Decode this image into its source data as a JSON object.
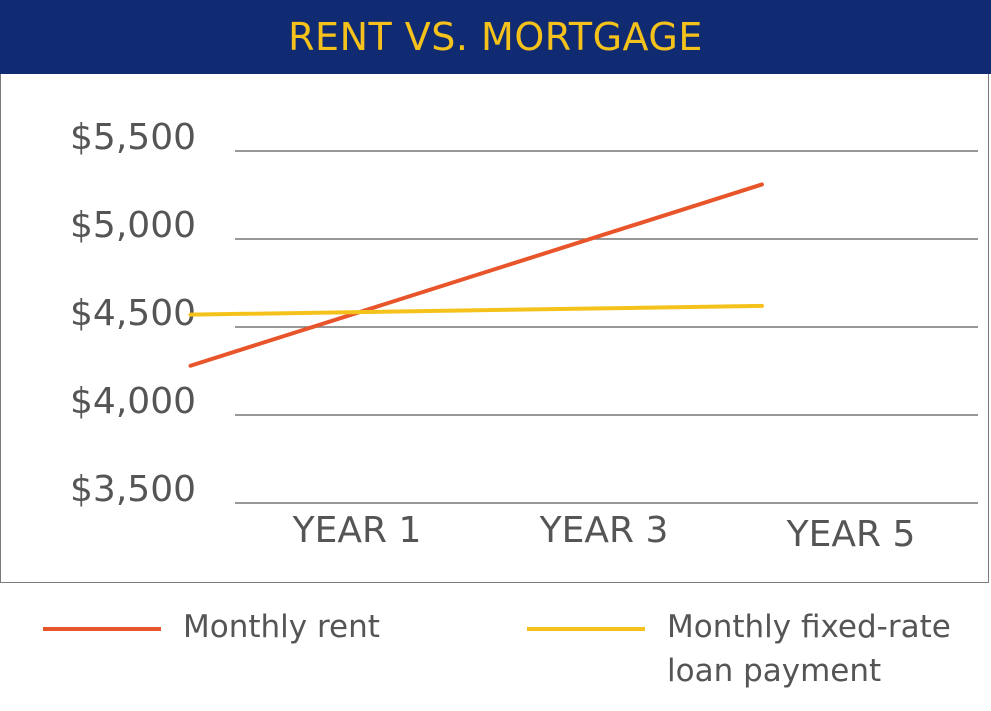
{
  "title": "RENT VS. MORTGAGE",
  "colors": {
    "title_bg": "#112b72",
    "title_text": "#f5c21b",
    "rent": "#e8552b",
    "loan": "#f5c21b",
    "grid": "#777777",
    "tick_text": "#555555"
  },
  "legend": {
    "rent_label": "Monthly rent",
    "loan_label_line1": "Monthly fixed-rate",
    "loan_label_line2": "loan payment"
  },
  "chart_data": {
    "type": "line",
    "title": "RENT VS. MORTGAGE",
    "xlabel": "",
    "ylabel": "",
    "categories": [
      "YEAR 1",
      "YEAR 3",
      "YEAR 5"
    ],
    "y_ticks": [
      {
        "value": 5500,
        "label": "$5,500"
      },
      {
        "value": 5000,
        "label": "$5,000"
      },
      {
        "value": 4500,
        "label": "$4,500"
      },
      {
        "value": 4000,
        "label": "$4,000"
      },
      {
        "value": 3500,
        "label": "$3,500"
      }
    ],
    "ylim": [
      3500,
      5500
    ],
    "grid": true,
    "legend_position": "bottom",
    "series": [
      {
        "name": "Monthly rent",
        "color": "#e8552b",
        "x": [
          0.5,
          5
        ],
        "values": [
          4280,
          5310
        ]
      },
      {
        "name": "Monthly fixed-rate loan payment",
        "color": "#f5c21b",
        "x": [
          0.5,
          5
        ],
        "values": [
          4570,
          4620
        ]
      }
    ]
  }
}
